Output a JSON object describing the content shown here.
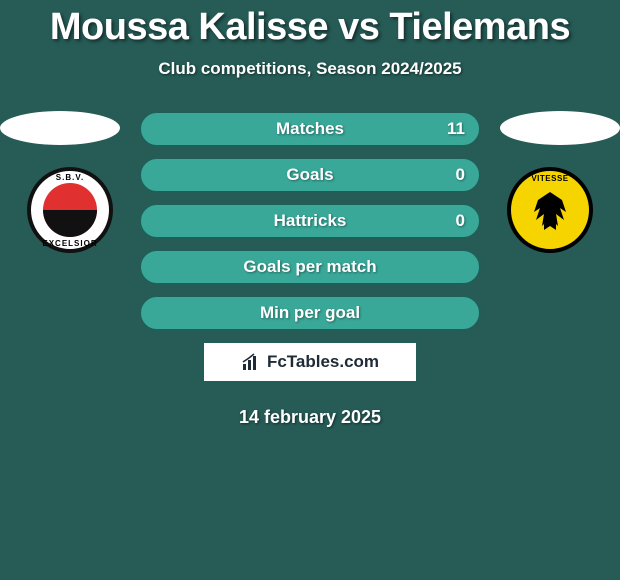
{
  "title": "Moussa Kalisse vs Tielemans",
  "title_fontsize": 38,
  "subtitle": "Club competitions, Season 2024/2025",
  "subtitle_fontsize": 17,
  "stats": [
    {
      "label": "Matches",
      "value": "11"
    },
    {
      "label": "Goals",
      "value": "0"
    },
    {
      "label": "Hattricks",
      "value": "0"
    },
    {
      "label": "Goals per match",
      "value": ""
    },
    {
      "label": "Min per goal",
      "value": ""
    }
  ],
  "row_gap": 10,
  "row_bg": "#39a899",
  "row_border": "#215e57",
  "left_badge": {
    "top": "S.B.V.",
    "bottom": "EXCELSIOR"
  },
  "right_badge": {
    "top": "VITESSE"
  },
  "branding": "FcTables.com",
  "date": "14 february 2025",
  "colors": {
    "background": "#265b56",
    "ellipse": "#ffffff",
    "text": "#ffffff"
  }
}
